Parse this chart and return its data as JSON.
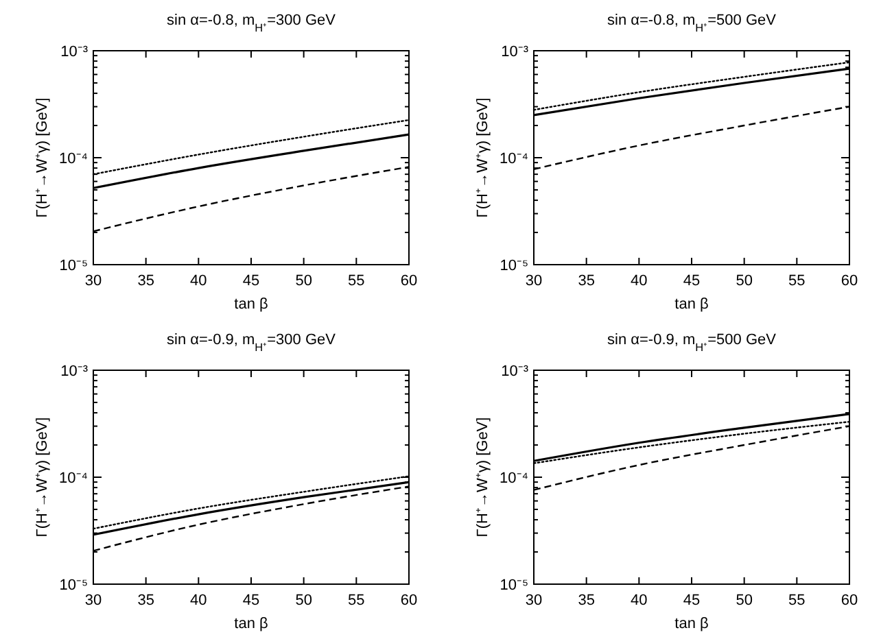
{
  "chart_data": [
    {
      "type": "line",
      "title": "sin α=-0.8, m$_{H⁺}$=300 GeV",
      "xlabel": "tan β",
      "ylabel": "Γ(H⁺→W⁺γ) [GeV]",
      "log": "y",
      "grid": false,
      "xlim": [
        30,
        60
      ],
      "xticks": [
        30,
        35,
        40,
        45,
        50,
        55,
        60
      ],
      "ylim": [
        1e-05,
        0.001
      ],
      "yticks": [
        {
          "value": 1e-05,
          "label": "10⁻⁵"
        },
        {
          "value": 2e-05,
          "label": null
        },
        {
          "value": 3e-05,
          "label": null
        },
        {
          "value": 4e-05,
          "label": null
        },
        {
          "value": 5e-05,
          "label": null
        },
        {
          "value": 6e-05,
          "label": null
        },
        {
          "value": 7e-05,
          "label": null
        },
        {
          "value": 8e-05,
          "label": null
        },
        {
          "value": 9e-05,
          "label": null
        },
        {
          "value": 0.0001,
          "label": "10⁻⁴"
        },
        {
          "value": 0.0002,
          "label": null
        },
        {
          "value": 0.0003,
          "label": null
        },
        {
          "value": 0.0004,
          "label": null
        },
        {
          "value": 0.0005,
          "label": null
        },
        {
          "value": 0.0006,
          "label": null
        },
        {
          "value": 0.0007,
          "label": null
        },
        {
          "value": 0.0008,
          "label": null
        },
        {
          "value": 0.0009,
          "label": null
        },
        {
          "value": 0.001,
          "label": "10⁻³"
        }
      ],
      "x": [
        30,
        40,
        50,
        60
      ],
      "series": [
        {
          "color": "#000000",
          "line_style": "solid",
          "values": [
            5.2e-05,
            8e-05,
            0.000116,
            0.000165
          ]
        },
        {
          "color": "#000000",
          "line_style": "dotted",
          "values": [
            7e-05,
            0.000107,
            0.000157,
            0.000225
          ]
        },
        {
          "color": "#000000",
          "line_style": "dashed",
          "values": [
            2.05e-05,
            3.5e-05,
            5.5e-05,
            8.2e-05
          ]
        }
      ]
    },
    {
      "type": "line",
      "title": "sin α=-0.8, m$_{H⁺}$=500 GeV",
      "xlabel": "tan β",
      "ylabel": "Γ(H⁺→W⁺γ) [GeV]",
      "log": "y",
      "grid": false,
      "xlim": [
        30,
        60
      ],
      "xticks": [
        30,
        35,
        40,
        45,
        50,
        55,
        60
      ],
      "ylim": [
        1e-05,
        0.001
      ],
      "yticks": [
        {
          "value": 1e-05,
          "label": "10⁻⁵"
        },
        {
          "value": 2e-05,
          "label": null
        },
        {
          "value": 3e-05,
          "label": null
        },
        {
          "value": 4e-05,
          "label": null
        },
        {
          "value": 5e-05,
          "label": null
        },
        {
          "value": 6e-05,
          "label": null
        },
        {
          "value": 7e-05,
          "label": null
        },
        {
          "value": 8e-05,
          "label": null
        },
        {
          "value": 9e-05,
          "label": null
        },
        {
          "value": 0.0001,
          "label": "10⁻⁴"
        },
        {
          "value": 0.0002,
          "label": null
        },
        {
          "value": 0.0003,
          "label": null
        },
        {
          "value": 0.0004,
          "label": null
        },
        {
          "value": 0.0005,
          "label": null
        },
        {
          "value": 0.0006,
          "label": null
        },
        {
          "value": 0.0007,
          "label": null
        },
        {
          "value": 0.0008,
          "label": null
        },
        {
          "value": 0.0009,
          "label": null
        },
        {
          "value": 0.001,
          "label": "10⁻³"
        }
      ],
      "x": [
        30,
        40,
        50,
        60
      ],
      "series": [
        {
          "color": "#000000",
          "line_style": "solid",
          "values": [
            0.00025,
            0.00036,
            0.0005,
            0.00068
          ]
        },
        {
          "color": "#000000",
          "line_style": "dotted",
          "values": [
            0.00028,
            0.00041,
            0.00057,
            0.00078
          ]
        },
        {
          "color": "#000000",
          "line_style": "dashed",
          "values": [
            7.8e-05,
            0.00013,
            0.0002,
            0.0003
          ]
        }
      ]
    },
    {
      "type": "line",
      "title": "sin α=-0.9, m$_{H⁺}$=300 GeV",
      "xlabel": "tan β",
      "ylabel": "Γ(H⁺→W⁺γ) [GeV]",
      "log": "y",
      "grid": false,
      "xlim": [
        30,
        60
      ],
      "xticks": [
        30,
        35,
        40,
        45,
        50,
        55,
        60
      ],
      "ylim": [
        1e-05,
        0.001
      ],
      "yticks": [
        {
          "value": 1e-05,
          "label": "10⁻⁵"
        },
        {
          "value": 2e-05,
          "label": null
        },
        {
          "value": 3e-05,
          "label": null
        },
        {
          "value": 4e-05,
          "label": null
        },
        {
          "value": 5e-05,
          "label": null
        },
        {
          "value": 6e-05,
          "label": null
        },
        {
          "value": 7e-05,
          "label": null
        },
        {
          "value": 8e-05,
          "label": null
        },
        {
          "value": 9e-05,
          "label": null
        },
        {
          "value": 0.0001,
          "label": "10⁻⁴"
        },
        {
          "value": 0.0002,
          "label": null
        },
        {
          "value": 0.0003,
          "label": null
        },
        {
          "value": 0.0004,
          "label": null
        },
        {
          "value": 0.0005,
          "label": null
        },
        {
          "value": 0.0006,
          "label": null
        },
        {
          "value": 0.0007,
          "label": null
        },
        {
          "value": 0.0008,
          "label": null
        },
        {
          "value": 0.0009,
          "label": null
        },
        {
          "value": 0.001,
          "label": "10⁻³"
        }
      ],
      "x": [
        30,
        40,
        50,
        60
      ],
      "series": [
        {
          "color": "#000000",
          "line_style": "solid",
          "values": [
            2.9e-05,
            4.5e-05,
            6.5e-05,
            9e-05
          ]
        },
        {
          "color": "#000000",
          "line_style": "dotted",
          "values": [
            3.3e-05,
            5.1e-05,
            7.3e-05,
            0.000102
          ]
        },
        {
          "color": "#000000",
          "line_style": "dashed",
          "values": [
            2.05e-05,
            3.6e-05,
            5.6e-05,
            8.2e-05
          ]
        }
      ]
    },
    {
      "type": "line",
      "title": "sin α=-0.9, m$_{H⁺}$=500 GeV",
      "xlabel": "tan β",
      "ylabel": "Γ(H⁺→W⁺γ) [GeV]",
      "log": "y",
      "grid": false,
      "xlim": [
        30,
        60
      ],
      "xticks": [
        30,
        35,
        40,
        45,
        50,
        55,
        60
      ],
      "ylim": [
        1e-05,
        0.001
      ],
      "yticks": [
        {
          "value": 1e-05,
          "label": "10⁻⁵"
        },
        {
          "value": 2e-05,
          "label": null
        },
        {
          "value": 3e-05,
          "label": null
        },
        {
          "value": 4e-05,
          "label": null
        },
        {
          "value": 5e-05,
          "label": null
        },
        {
          "value": 6e-05,
          "label": null
        },
        {
          "value": 7e-05,
          "label": null
        },
        {
          "value": 8e-05,
          "label": null
        },
        {
          "value": 9e-05,
          "label": null
        },
        {
          "value": 0.0001,
          "label": "10⁻⁴"
        },
        {
          "value": 0.0002,
          "label": null
        },
        {
          "value": 0.0003,
          "label": null
        },
        {
          "value": 0.0004,
          "label": null
        },
        {
          "value": 0.0005,
          "label": null
        },
        {
          "value": 0.0006,
          "label": null
        },
        {
          "value": 0.0007,
          "label": null
        },
        {
          "value": 0.0008,
          "label": null
        },
        {
          "value": 0.0009,
          "label": null
        },
        {
          "value": 0.001,
          "label": "10⁻³"
        }
      ],
      "x": [
        30,
        40,
        50,
        60
      ],
      "series": [
        {
          "color": "#000000",
          "line_style": "solid",
          "values": [
            0.000142,
            0.00021,
            0.00029,
            0.00039
          ]
        },
        {
          "color": "#000000",
          "line_style": "dotted",
          "values": [
            0.000135,
            0.00019,
            0.000255,
            0.00033
          ]
        },
        {
          "color": "#000000",
          "line_style": "dashed",
          "values": [
            7.6e-05,
            0.00013,
            0.0002,
            0.0003
          ]
        }
      ]
    }
  ]
}
